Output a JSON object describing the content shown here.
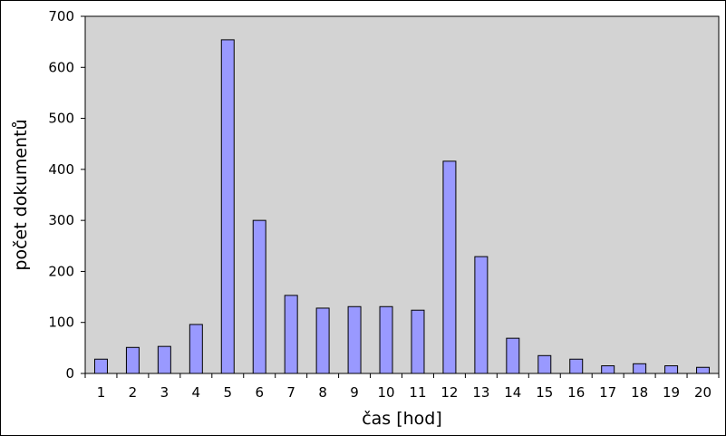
{
  "chart_data": {
    "type": "bar",
    "title": "",
    "xlabel": "čas [hod]",
    "ylabel": "počet dokumentů",
    "categories": [
      "1",
      "2",
      "3",
      "4",
      "5",
      "6",
      "7",
      "8",
      "9",
      "10",
      "11",
      "12",
      "13",
      "14",
      "15",
      "16",
      "17",
      "18",
      "19",
      "20"
    ],
    "values": [
      28,
      51,
      53,
      96,
      654,
      300,
      153,
      128,
      131,
      131,
      124,
      416,
      229,
      69,
      35,
      28,
      15,
      19,
      15,
      12
    ],
    "ylim": [
      0,
      700
    ],
    "yticks": [
      0,
      100,
      200,
      300,
      400,
      500,
      600,
      700
    ],
    "grid": false,
    "legend": "none",
    "colors": {
      "plot_background": "#d3d3d3",
      "bar_fill": "#9999ff",
      "bar_stroke": "#000000",
      "axis": "#000000"
    }
  }
}
